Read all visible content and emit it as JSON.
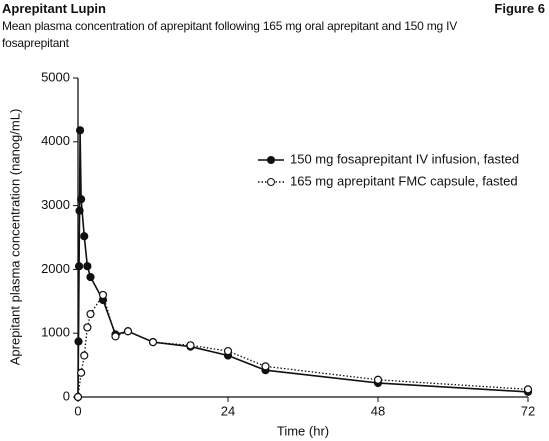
{
  "chart_data": {
    "type": "line",
    "title": "Aprepitant Lupin",
    "figure_label": "Figure 6",
    "subtitle": "Mean plasma concentration of aprepitant following 165 mg oral aprepitant and 150 mg IV fosaprepitant",
    "x_label": "Time (hr)",
    "y_label": "Aprepitant plasma concentration (nanog/mL)",
    "xlim": [
      0,
      72
    ],
    "xticks": [
      0,
      24,
      48,
      72
    ],
    "ylim": [
      0,
      5000
    ],
    "yticks": [
      0,
      1000,
      2000,
      3000,
      4000,
      5000
    ],
    "legend_position": "upper right",
    "series": [
      {
        "name": "150 mg fosaprepitant IV infusion, fasted",
        "color": "#111111",
        "marker": "filled",
        "line_style": "solid",
        "x": [
          0,
          0.08,
          0.17,
          0.25,
          0.33,
          0.5,
          1,
          1.5,
          2,
          4,
          6,
          8,
          12,
          18,
          24,
          30,
          48,
          72
        ],
        "values": [
          0,
          870,
          2050,
          2920,
          4180,
          3100,
          2520,
          2050,
          1880,
          1520,
          980,
          1030,
          860,
          790,
          650,
          420,
          220,
          80
        ]
      },
      {
        "name": "165 mg aprepitant FMC capsule, fasted",
        "color": "#111111",
        "marker": "open",
        "line_style": "dotted",
        "x": [
          0,
          0.5,
          1,
          1.5,
          2,
          4,
          6,
          8,
          12,
          18,
          24,
          30,
          48,
          72
        ],
        "values": [
          0,
          380,
          650,
          1090,
          1300,
          1600,
          950,
          1030,
          860,
          810,
          720,
          480,
          270,
          120
        ]
      }
    ]
  }
}
